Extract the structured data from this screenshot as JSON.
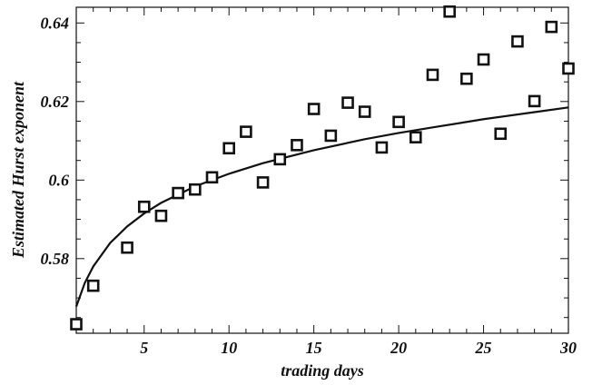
{
  "chart_data": {
    "type": "scatter",
    "title": "",
    "xlabel": "trading days",
    "ylabel": "Estimated Hurst exponent",
    "xlim": [
      1,
      30
    ],
    "ylim": [
      0.561,
      0.644
    ],
    "xticks": [
      5,
      10,
      15,
      20,
      25,
      30
    ],
    "yticks": [
      0.58,
      0.6,
      0.62,
      0.64
    ],
    "xtick_labels": [
      "5",
      "10",
      "15",
      "20",
      "25",
      "30"
    ],
    "ytick_labels": [
      "0.58",
      "0.6",
      "0.62",
      "0.64"
    ],
    "marker": "open-square",
    "grid": false,
    "legend": false,
    "series": [
      {
        "kind": "points",
        "x": [
          1,
          2,
          4,
          5,
          6,
          7,
          8,
          9,
          10,
          11,
          12,
          13,
          14,
          15,
          16,
          17,
          18,
          19,
          20,
          21,
          22,
          23,
          24,
          25,
          26,
          27,
          28,
          29,
          30
        ],
        "y": [
          0.5633,
          0.5731,
          0.5828,
          0.5932,
          0.5909,
          0.5967,
          0.5976,
          0.6007,
          0.6081,
          0.6123,
          0.5994,
          0.6053,
          0.6089,
          0.6181,
          0.6113,
          0.6197,
          0.6174,
          0.6083,
          0.6148,
          0.6109,
          0.6268,
          0.6429,
          0.6258,
          0.6307,
          0.6118,
          0.6353,
          0.6201,
          0.639,
          0.6284
        ]
      },
      {
        "kind": "fit-curve",
        "x": [
          1,
          1.5,
          2,
          3,
          4,
          5,
          6,
          8,
          10,
          12,
          15,
          18,
          20,
          22,
          25,
          28,
          30
        ],
        "y": [
          0.5678,
          0.5738,
          0.578,
          0.584,
          0.5882,
          0.5915,
          0.5942,
          0.5984,
          0.6016,
          0.6043,
          0.6076,
          0.6104,
          0.612,
          0.6134,
          0.6155,
          0.6173,
          0.6185
        ]
      }
    ],
    "colors": {
      "marker": "#111111",
      "line": "#111111",
      "axis": "#111111"
    }
  }
}
